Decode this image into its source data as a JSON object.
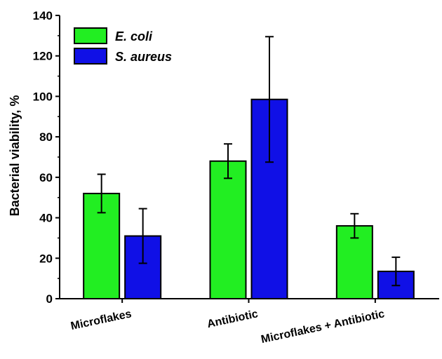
{
  "chart_data": {
    "type": "bar",
    "title": "",
    "xlabel": "",
    "ylabel": "Bacterial viability, %",
    "ylim": [
      0,
      140
    ],
    "yticks": [
      0,
      20,
      40,
      60,
      80,
      100,
      120,
      140
    ],
    "grid": false,
    "legend_position": "top-left",
    "categories": [
      "Microflakes",
      "Antibiotic",
      "Microflakes + Antibiotic"
    ],
    "series": [
      {
        "name": "E. coli",
        "color": "#22ee22",
        "values": [
          52,
          68,
          36
        ],
        "errors": [
          9.5,
          8.5,
          6
        ]
      },
      {
        "name": "S. aureus",
        "color": "#1010e6",
        "values": [
          31,
          98.5,
          13.5
        ],
        "errors": [
          13.5,
          31,
          7
        ]
      }
    ]
  }
}
